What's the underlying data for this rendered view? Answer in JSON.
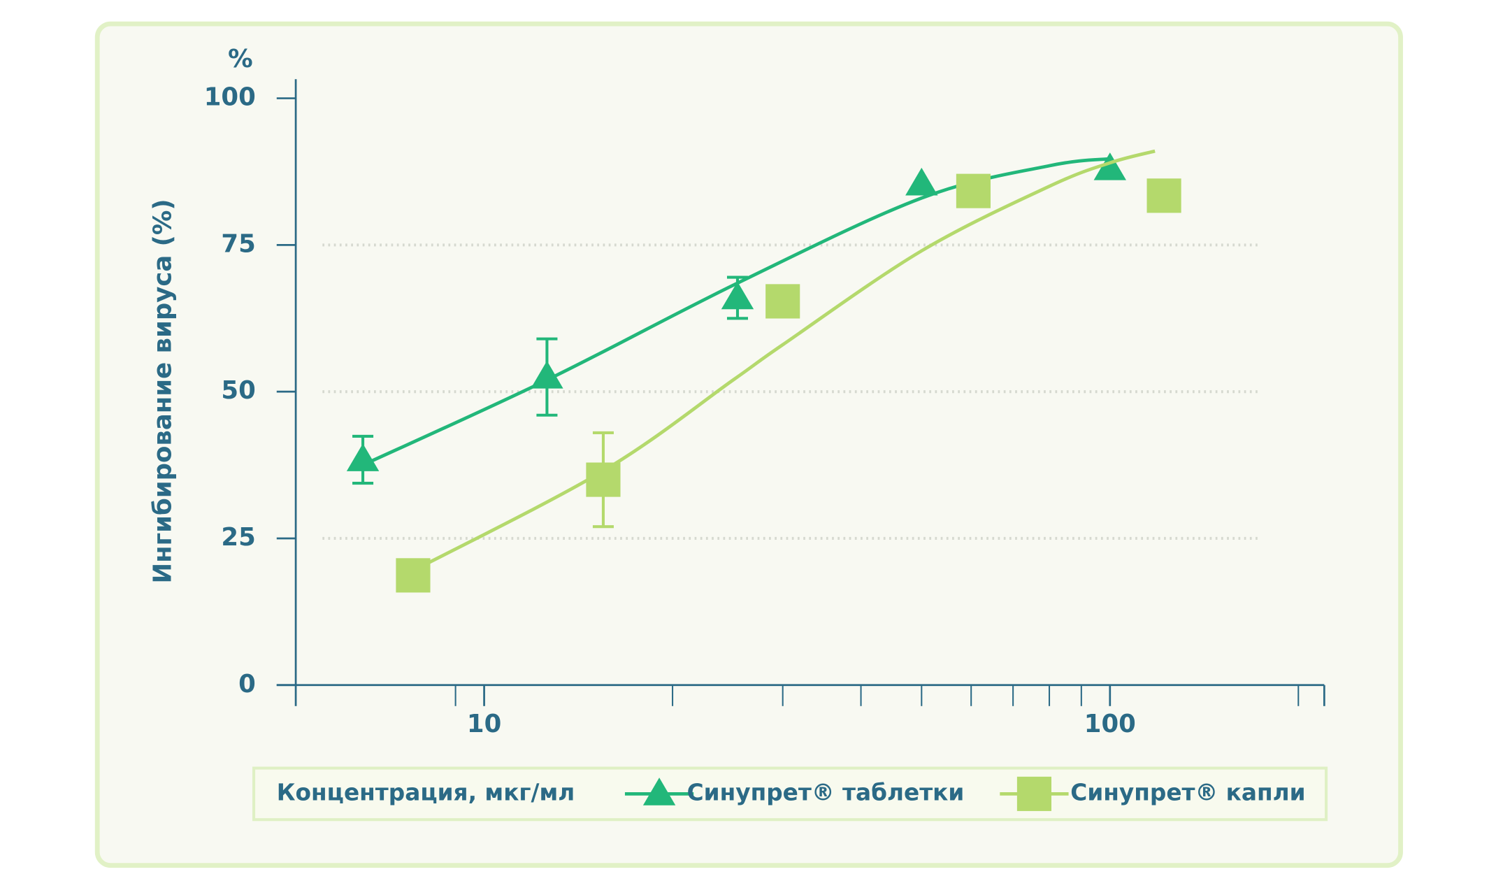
{
  "chart_data": {
    "type": "line",
    "y_unit": "%",
    "ylabel": "Ингибирование вируса (%)",
    "xlabel": "Концентрация, мкг/мл",
    "xscale": "log",
    "xlim": [
      5,
      220
    ],
    "xticks": [
      10,
      100
    ],
    "xminor_ticks": [
      9,
      20,
      30,
      40,
      50,
      60,
      70,
      80,
      90,
      200
    ],
    "ylim": [
      0,
      100
    ],
    "yticks": [
      0,
      25,
      50,
      75,
      100
    ],
    "grid": true,
    "series": [
      {
        "name": "Синупрет® таблетки",
        "color": "#22b77a",
        "marker": "triangle",
        "x": [
          6.4,
          12.6,
          25.4,
          50,
          100
        ],
        "values": [
          38.4,
          52.5,
          66,
          85.4,
          88
        ],
        "errors": [
          4,
          6.5,
          3.5,
          null,
          null
        ],
        "fit_x": [
          6.4,
          12.6,
          25.4,
          50,
          80,
          100
        ],
        "fit_y": [
          37.5,
          52,
          68.5,
          83,
          88.5,
          89.7
        ]
      },
      {
        "name": "Синупрет® капли",
        "color": "#b4d96c",
        "marker": "square",
        "x": [
          7.7,
          15.5,
          30,
          60.5,
          122
        ],
        "values": [
          18.7,
          35,
          65.4,
          84.2,
          83.4
        ],
        "errors": [
          null,
          8,
          null,
          null,
          null
        ],
        "fit_x": [
          7.7,
          15.5,
          25,
          30,
          50,
          80,
          100,
          118
        ],
        "fit_y": [
          19.5,
          36.5,
          52,
          58,
          74,
          85,
          89,
          91
        ]
      }
    ]
  }
}
